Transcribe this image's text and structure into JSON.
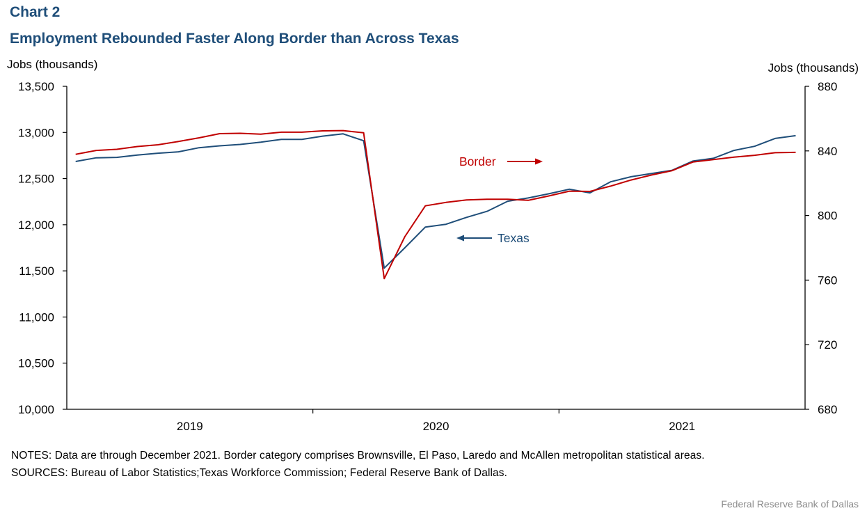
{
  "chart_label": "Chart 2",
  "title": "Employment Rebounded Faster Along Border than Across Texas",
  "notes": "NOTES: Data are through December 2021. Border category comprises Brownsville, El Paso, Laredo and McAllen metropolitan statistical areas.",
  "sources": "SOURCES: Bureau of Labor Statistics;Texas Workforce Commission; Federal Reserve Bank of Dallas.",
  "credit": "Federal Reserve Bank of Dallas",
  "colors": {
    "texas": "#1f4e79",
    "border": "#c00000",
    "axis": "#000000"
  },
  "chart_data": {
    "type": "line",
    "x_label_years": [
      "2019",
      "2020",
      "2021"
    ],
    "x_start": "2019-01",
    "x_end": "2021-12",
    "left_axis": {
      "label": "Jobs (thousands)",
      "ylim": [
        10000,
        13500
      ],
      "ticks": [
        "13,500",
        "13,000",
        "12,500",
        "12,000",
        "11,500",
        "11,000",
        "10,500",
        "10,000"
      ],
      "tick_values": [
        13500,
        13000,
        12500,
        12000,
        11500,
        11000,
        10500,
        10000
      ]
    },
    "right_axis": {
      "label": "Jobs (thousands)",
      "ylim": [
        680,
        880
      ],
      "ticks": [
        "880",
        "840",
        "800",
        "760",
        "720",
        "680"
      ],
      "tick_values": [
        880,
        840,
        800,
        760,
        720,
        680
      ]
    },
    "series": [
      {
        "name": "Texas",
        "axis": "left",
        "annotation": "Texas",
        "values": [
          12685,
          12725,
          12730,
          12755,
          12775,
          12790,
          12835,
          12855,
          12870,
          12895,
          12925,
          12925,
          12960,
          12985,
          12910,
          11530,
          11750,
          11975,
          12005,
          12080,
          12145,
          12255,
          12290,
          12335,
          12385,
          12345,
          12465,
          12520,
          12555,
          12590,
          12690,
          12720,
          12805,
          12850,
          12935,
          12965
        ]
      },
      {
        "name": "Border",
        "axis": "right",
        "annotation": "Border",
        "values": [
          837.9,
          840.3,
          841.0,
          842.7,
          843.8,
          845.8,
          848.1,
          850.7,
          850.9,
          850.4,
          851.6,
          851.6,
          852.4,
          852.6,
          851.2,
          760.9,
          786.9,
          806.0,
          808.1,
          809.6,
          810.1,
          810.1,
          809.4,
          812.1,
          815.1,
          814.9,
          818.2,
          822.0,
          825.1,
          827.8,
          833.1,
          834.6,
          836.1,
          837.3,
          838.9,
          839.1
        ]
      }
    ]
  }
}
